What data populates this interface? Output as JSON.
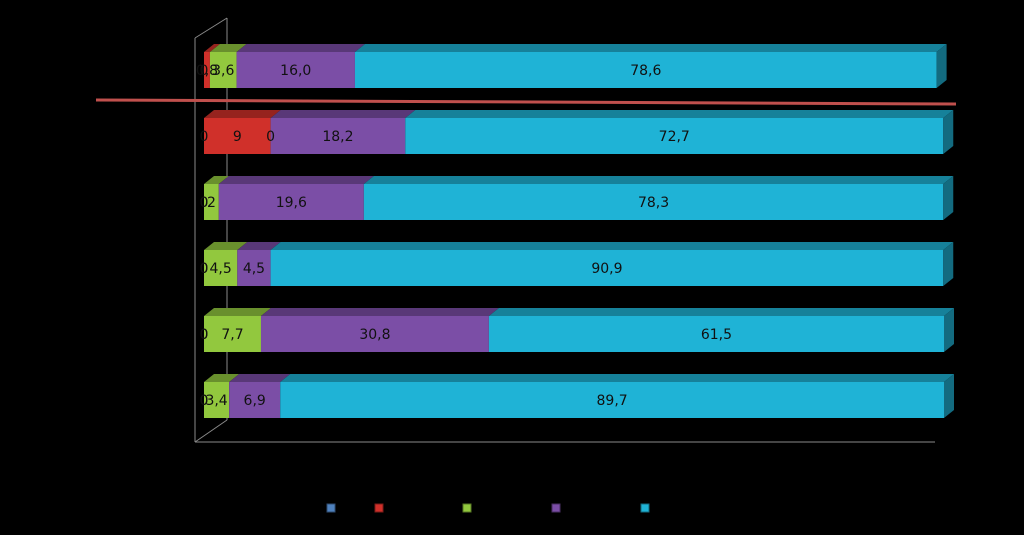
{
  "chart_data": {
    "type": "bar",
    "orientation": "horizontal",
    "stacked": true,
    "percent_stacked": true,
    "xlim": [
      0,
      100
    ],
    "grid": false,
    "legend_position": "bottom",
    "rows": [
      {
        "values": [
          0,
          0.8,
          3.6,
          16.0,
          78.6
        ],
        "labels": [
          "0",
          "0,8",
          "3,6",
          "16,0",
          "78,6"
        ]
      },
      {
        "values": [
          0,
          9,
          0,
          18.2,
          72.7
        ],
        "labels": [
          "0",
          "9",
          "0",
          "18,2",
          "72,7"
        ]
      },
      {
        "values": [
          0,
          0,
          2,
          19.6,
          78.3
        ],
        "labels": [
          "0",
          "0",
          "2",
          "19,6",
          "78,3"
        ]
      },
      {
        "values": [
          0,
          0,
          4.5,
          4.5,
          90.9
        ],
        "labels": [
          "0",
          "0",
          "4,5",
          "4,5",
          "90,9"
        ]
      },
      {
        "values": [
          0,
          0,
          7.7,
          30.8,
          61.5
        ],
        "labels": [
          "0",
          "0",
          "7,7",
          "30,8",
          "61,5"
        ]
      },
      {
        "values": [
          0,
          0,
          3.4,
          6.9,
          89.7
        ],
        "labels": [
          "0",
          "0",
          "3,4",
          "6,9",
          "89,7"
        ]
      }
    ],
    "series": [
      {
        "color": "#4f81bd"
      },
      {
        "color": "#d0302a"
      },
      {
        "color": "#92c83e"
      },
      {
        "color": "#7b4ea6"
      },
      {
        "color": "#1fb3d6"
      }
    ],
    "reference_line_color": "#c0504d"
  }
}
